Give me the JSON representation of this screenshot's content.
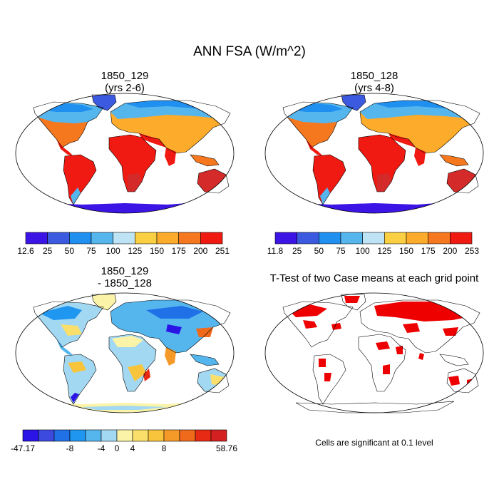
{
  "figure": {
    "title": "ANN FSA (W/m^2)",
    "panels": [
      {
        "id": "p1",
        "title_line1": "1850_129",
        "title_line2": "(yrs 2-6)",
        "colorbar": {
          "labels": [
            "12.6",
            "25",
            "50",
            "75",
            "100",
            "125",
            "150",
            "175",
            "200",
            "251"
          ],
          "colors": [
            "#3d14e6",
            "#3c5ae0",
            "#1f8ff0",
            "#55b6ee",
            "#bde3f5",
            "#fad042",
            "#fcab2a",
            "#f5781e",
            "#f01a12",
            "#d42a2a"
          ]
        }
      },
      {
        "id": "p2",
        "title_line1": "1850_128",
        "title_line2": "(yrs 4-8)",
        "colorbar": {
          "labels": [
            "11.8",
            "25",
            "50",
            "75",
            "100",
            "125",
            "150",
            "175",
            "200",
            "253"
          ],
          "colors": [
            "#3d14e6",
            "#3c5ae0",
            "#1f8ff0",
            "#55b6ee",
            "#bde3f5",
            "#fad042",
            "#fcab2a",
            "#f5781e",
            "#f01a12",
            "#d42a2a"
          ]
        }
      },
      {
        "id": "p3",
        "title_line1": "1850_129",
        "title_line2": "- 1850_128",
        "colorbar": {
          "labels": [
            "-47.17",
            "-8",
            "-4",
            "0",
            "4",
            "8",
            "58.76"
          ],
          "colors": [
            "#2a14e6",
            "#3c4ae0",
            "#2070e8",
            "#1f96f0",
            "#55b6ee",
            "#a3d8f2",
            "#fbf4a8",
            "#fae06a",
            "#f8c43c",
            "#f59a28",
            "#f06a1c",
            "#e62a14",
            "#d42020"
          ]
        }
      },
      {
        "id": "p4",
        "title_line1": "T-Test of two Case means at each grid point",
        "note": "Cells are significant at 0.1 level"
      }
    ]
  }
}
